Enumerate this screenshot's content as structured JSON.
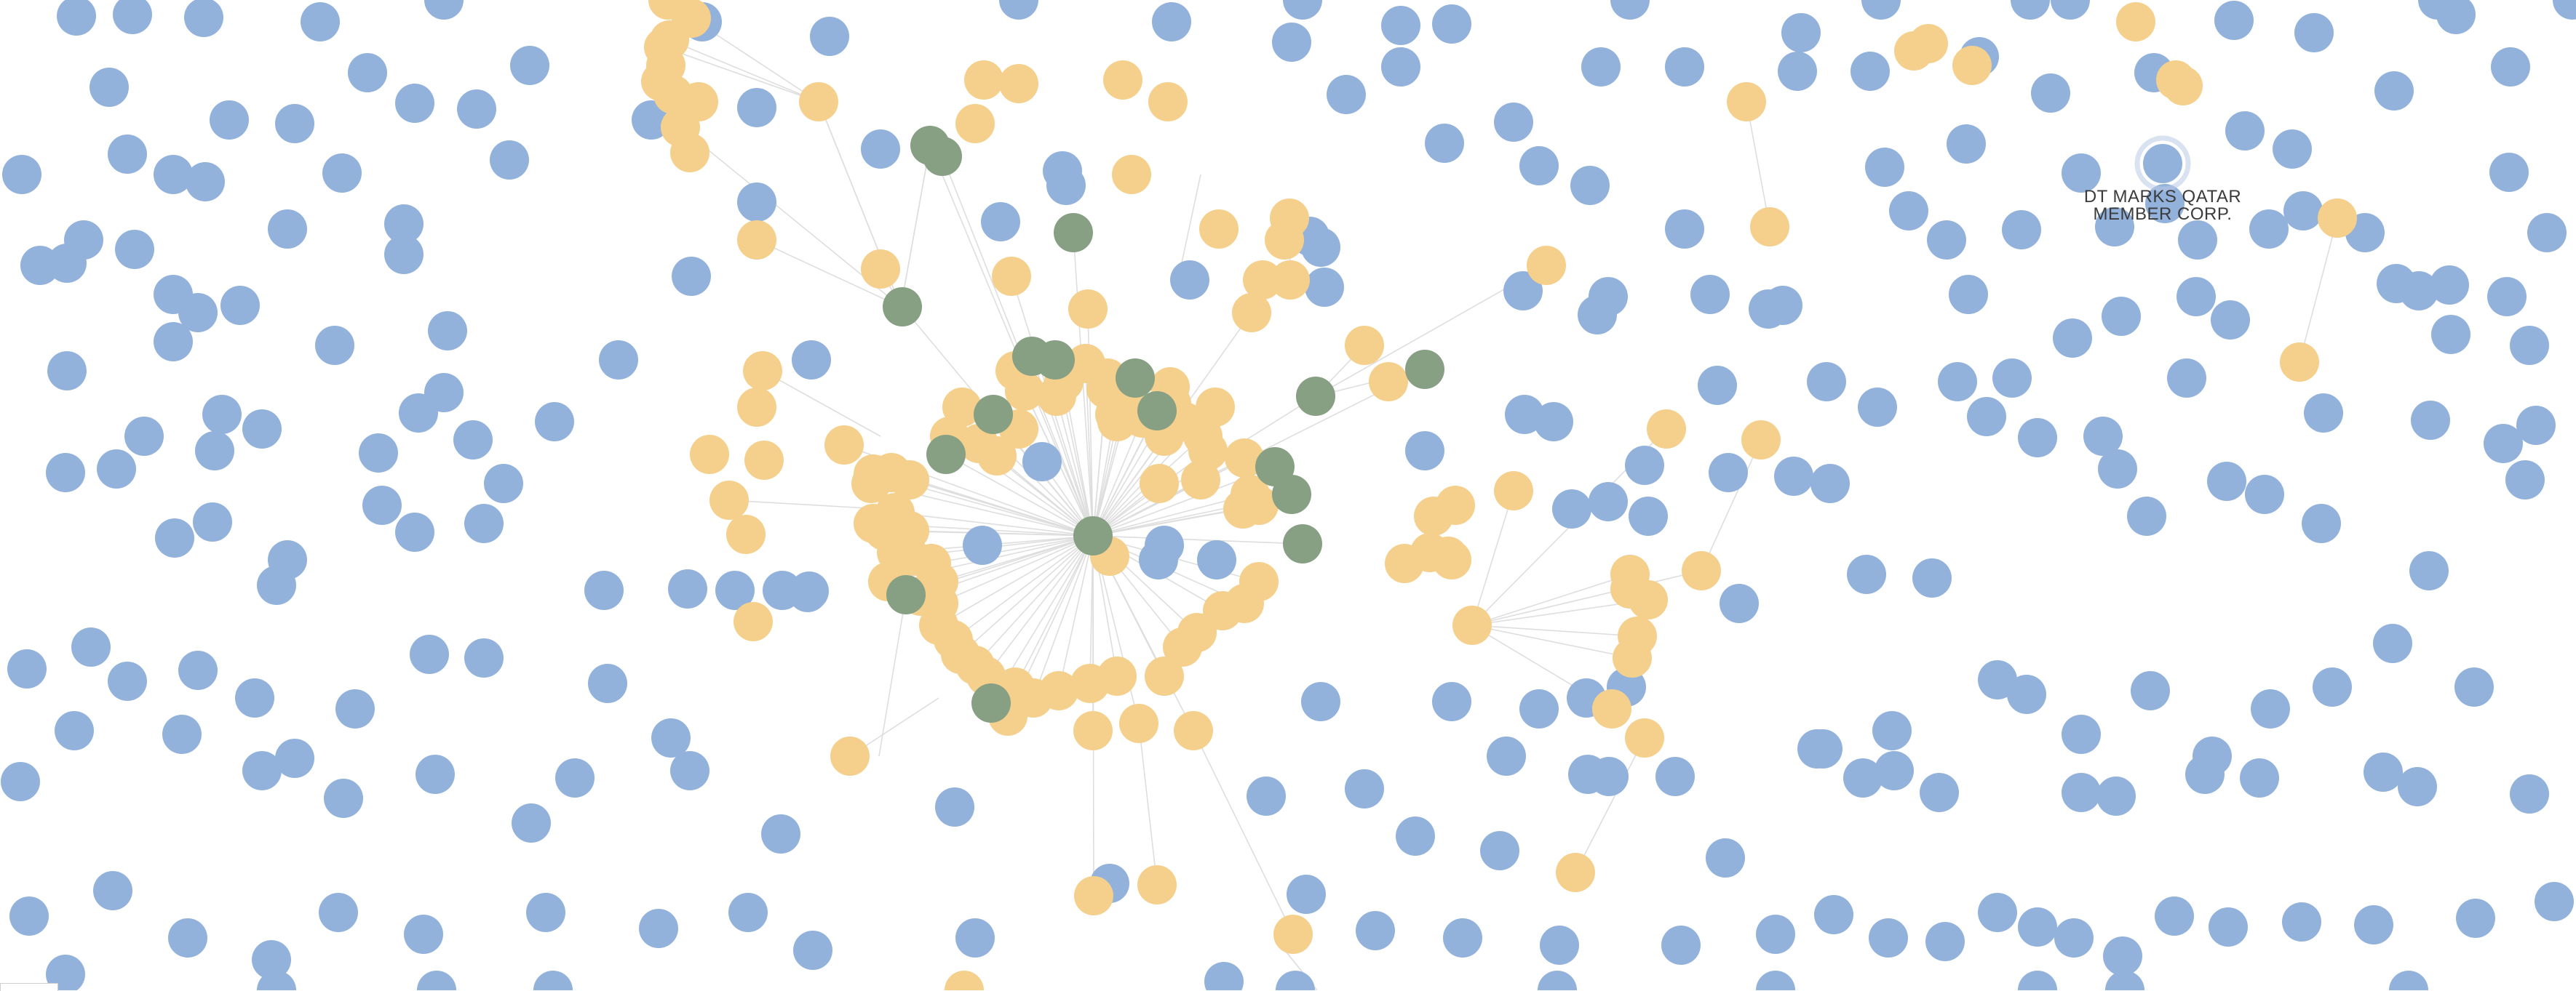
{
  "graph": {
    "colors": {
      "blue": "#92b2dc",
      "yellow": "#f5d08c",
      "green": "#879f83",
      "edge": "#dedede",
      "hover_ring": "#b9cbe6",
      "label": "#3b3b3b"
    },
    "hovered_node": {
      "label_lines": [
        "DT MARKS QATAR",
        "MEMBER CORP."
      ]
    }
  }
}
